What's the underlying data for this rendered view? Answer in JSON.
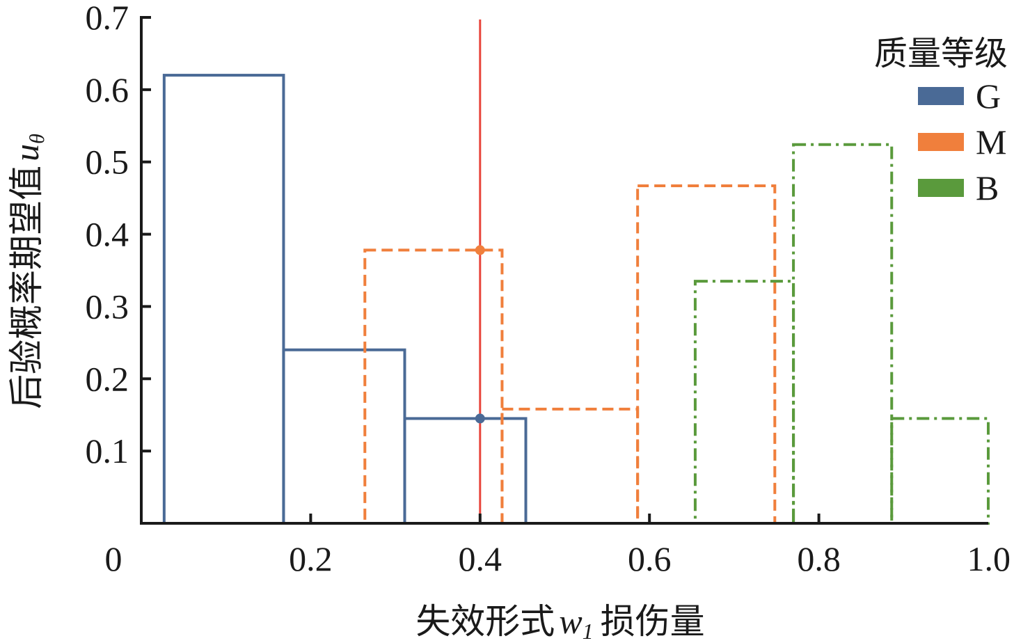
{
  "chart_data": {
    "type": "histogram",
    "xlabel_prefix": "失效形式",
    "xlabel_symbol": "w",
    "xlabel_subscript": "1",
    "xlabel_suffix": "损伤量",
    "ylabel_prefix": "后验概率期望值",
    "ylabel_symbol": "u",
    "ylabel_subscript": "θ",
    "xlim": [
      0,
      1.0
    ],
    "ylim": [
      0,
      0.7
    ],
    "x_ticks": [
      {
        "value": 0,
        "label": "0"
      },
      {
        "value": 0.2,
        "label": "0.2"
      },
      {
        "value": 0.4,
        "label": "0.4"
      },
      {
        "value": 0.6,
        "label": "0.6"
      },
      {
        "value": 0.8,
        "label": "0.8"
      },
      {
        "value": 1.0,
        "label": "1.0"
      }
    ],
    "y_ticks": [
      {
        "value": 0.1,
        "label": "0.1"
      },
      {
        "value": 0.2,
        "label": "0.2"
      },
      {
        "value": 0.3,
        "label": "0.3"
      },
      {
        "value": 0.4,
        "label": "0.4"
      },
      {
        "value": 0.5,
        "label": "0.5"
      },
      {
        "value": 0.6,
        "label": "0.6"
      },
      {
        "value": 0.7,
        "label": "0.7"
      }
    ],
    "legend": {
      "title": "质量等级",
      "position": "top-right"
    },
    "series": [
      {
        "name": "G",
        "color": "#4a6a96",
        "line_style": "solid",
        "bins": [
          {
            "x0": 0.027,
            "x1": 0.168,
            "value": 0.62
          },
          {
            "x0": 0.168,
            "x1": 0.311,
            "value": 0.24
          },
          {
            "x0": 0.311,
            "x1": 0.454,
            "value": 0.145
          }
        ]
      },
      {
        "name": "M",
        "color": "#f07f3c",
        "line_style": "dashed",
        "bins": [
          {
            "x0": 0.264,
            "x1": 0.426,
            "value": 0.378
          },
          {
            "x0": 0.426,
            "x1": 0.586,
            "value": 0.158
          },
          {
            "x0": 0.586,
            "x1": 0.748,
            "value": 0.467
          }
        ]
      },
      {
        "name": "B",
        "color": "#5a9a3c",
        "line_style": "dashdot",
        "bins": [
          {
            "x0": 0.654,
            "x1": 0.77,
            "value": 0.335
          },
          {
            "x0": 0.77,
            "x1": 0.886,
            "value": 0.524
          },
          {
            "x0": 0.886,
            "x1": 1.0,
            "value": 0.145
          }
        ]
      }
    ],
    "reference_line": {
      "x": 0.4,
      "color": "#e8453c",
      "markers": [
        {
          "series": "M",
          "y": 0.378
        },
        {
          "series": "G",
          "y": 0.145
        }
      ]
    }
  }
}
